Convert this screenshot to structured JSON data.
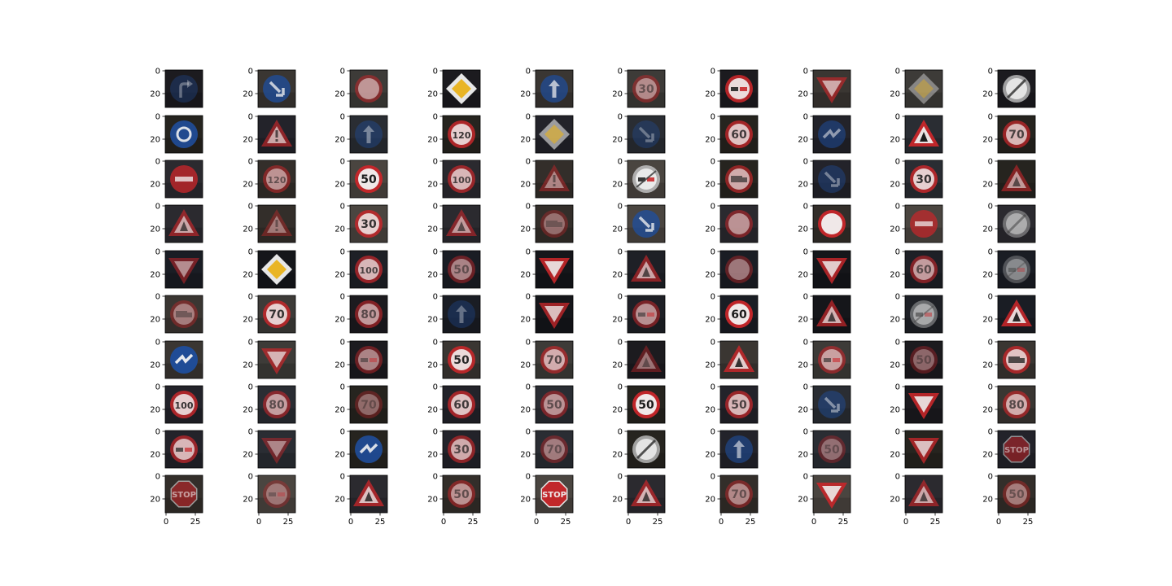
{
  "figure": {
    "rows": 10,
    "cols": 10,
    "y_tick_labels": [
      "0",
      "20"
    ],
    "x_tick_labels": [
      "0",
      "25"
    ]
  },
  "panels": [
    [
      "turn-right-ahead",
      "keep-right",
      "speed-limit",
      "priority-road",
      "ahead-only",
      "speed-limit-30",
      "no-passing",
      "yield",
      "priority-road",
      "end-of-restrictions"
    ],
    [
      "roundabout",
      "general-caution",
      "ahead-only",
      "speed-limit-120",
      "priority-road",
      "keep-right",
      "speed-limit-60",
      "bumpy-road",
      "right-of-way",
      "speed-limit-70"
    ],
    [
      "no-entry",
      "speed-limit-120",
      "speed-limit-50",
      "speed-limit-100",
      "general-caution",
      "end-of-no-passing",
      "no-passing-trucks",
      "keep-right",
      "speed-limit-30",
      "road-work"
    ],
    [
      "right-of-way",
      "general-caution",
      "speed-limit-30",
      "slippery-road",
      "no-passing-trucks",
      "keep-right",
      "speed-limit",
      "no-vehicles",
      "no-entry",
      "end-of-restrictions"
    ],
    [
      "yield",
      "priority-road",
      "speed-limit-100",
      "speed-limit-50",
      "yield",
      "warning",
      "speed-limit",
      "yield",
      "speed-limit-60",
      "end-of-no-passing"
    ],
    [
      "no-passing-trucks",
      "speed-limit-70",
      "speed-limit-80",
      "ahead-only",
      "yield",
      "no-passing",
      "speed-limit-60",
      "right-of-way",
      "end-of-no-passing",
      "road-work"
    ],
    [
      "bumpy-road",
      "yield",
      "no-passing",
      "speed-limit-50",
      "speed-limit-70",
      "road-work",
      "right-of-way",
      "no-passing",
      "speed-limit-50",
      "no-passing-trucks"
    ],
    [
      "speed-limit-100",
      "speed-limit-80",
      "speed-limit-70",
      "speed-limit-60",
      "speed-limit-50",
      "speed-limit-50",
      "speed-limit-50",
      "keep-right",
      "yield",
      "speed-limit-80"
    ],
    [
      "no-passing",
      "yield",
      "bumpy-road",
      "speed-limit-30",
      "speed-limit-70",
      "end-of-restrictions",
      "ahead-only",
      "speed-limit-50",
      "yield",
      "stop"
    ],
    [
      "stop",
      "no-passing",
      "pedestrians",
      "speed-limit-50",
      "stop",
      "right-of-way",
      "speed-limit-70",
      "yield",
      "right-of-way",
      "speed-limit-50"
    ]
  ],
  "colors": {
    "axis": "#000000",
    "sign_red": "#c8262a",
    "sign_blue": "#1f4e9c",
    "sign_yellow": "#e9b21b"
  }
}
